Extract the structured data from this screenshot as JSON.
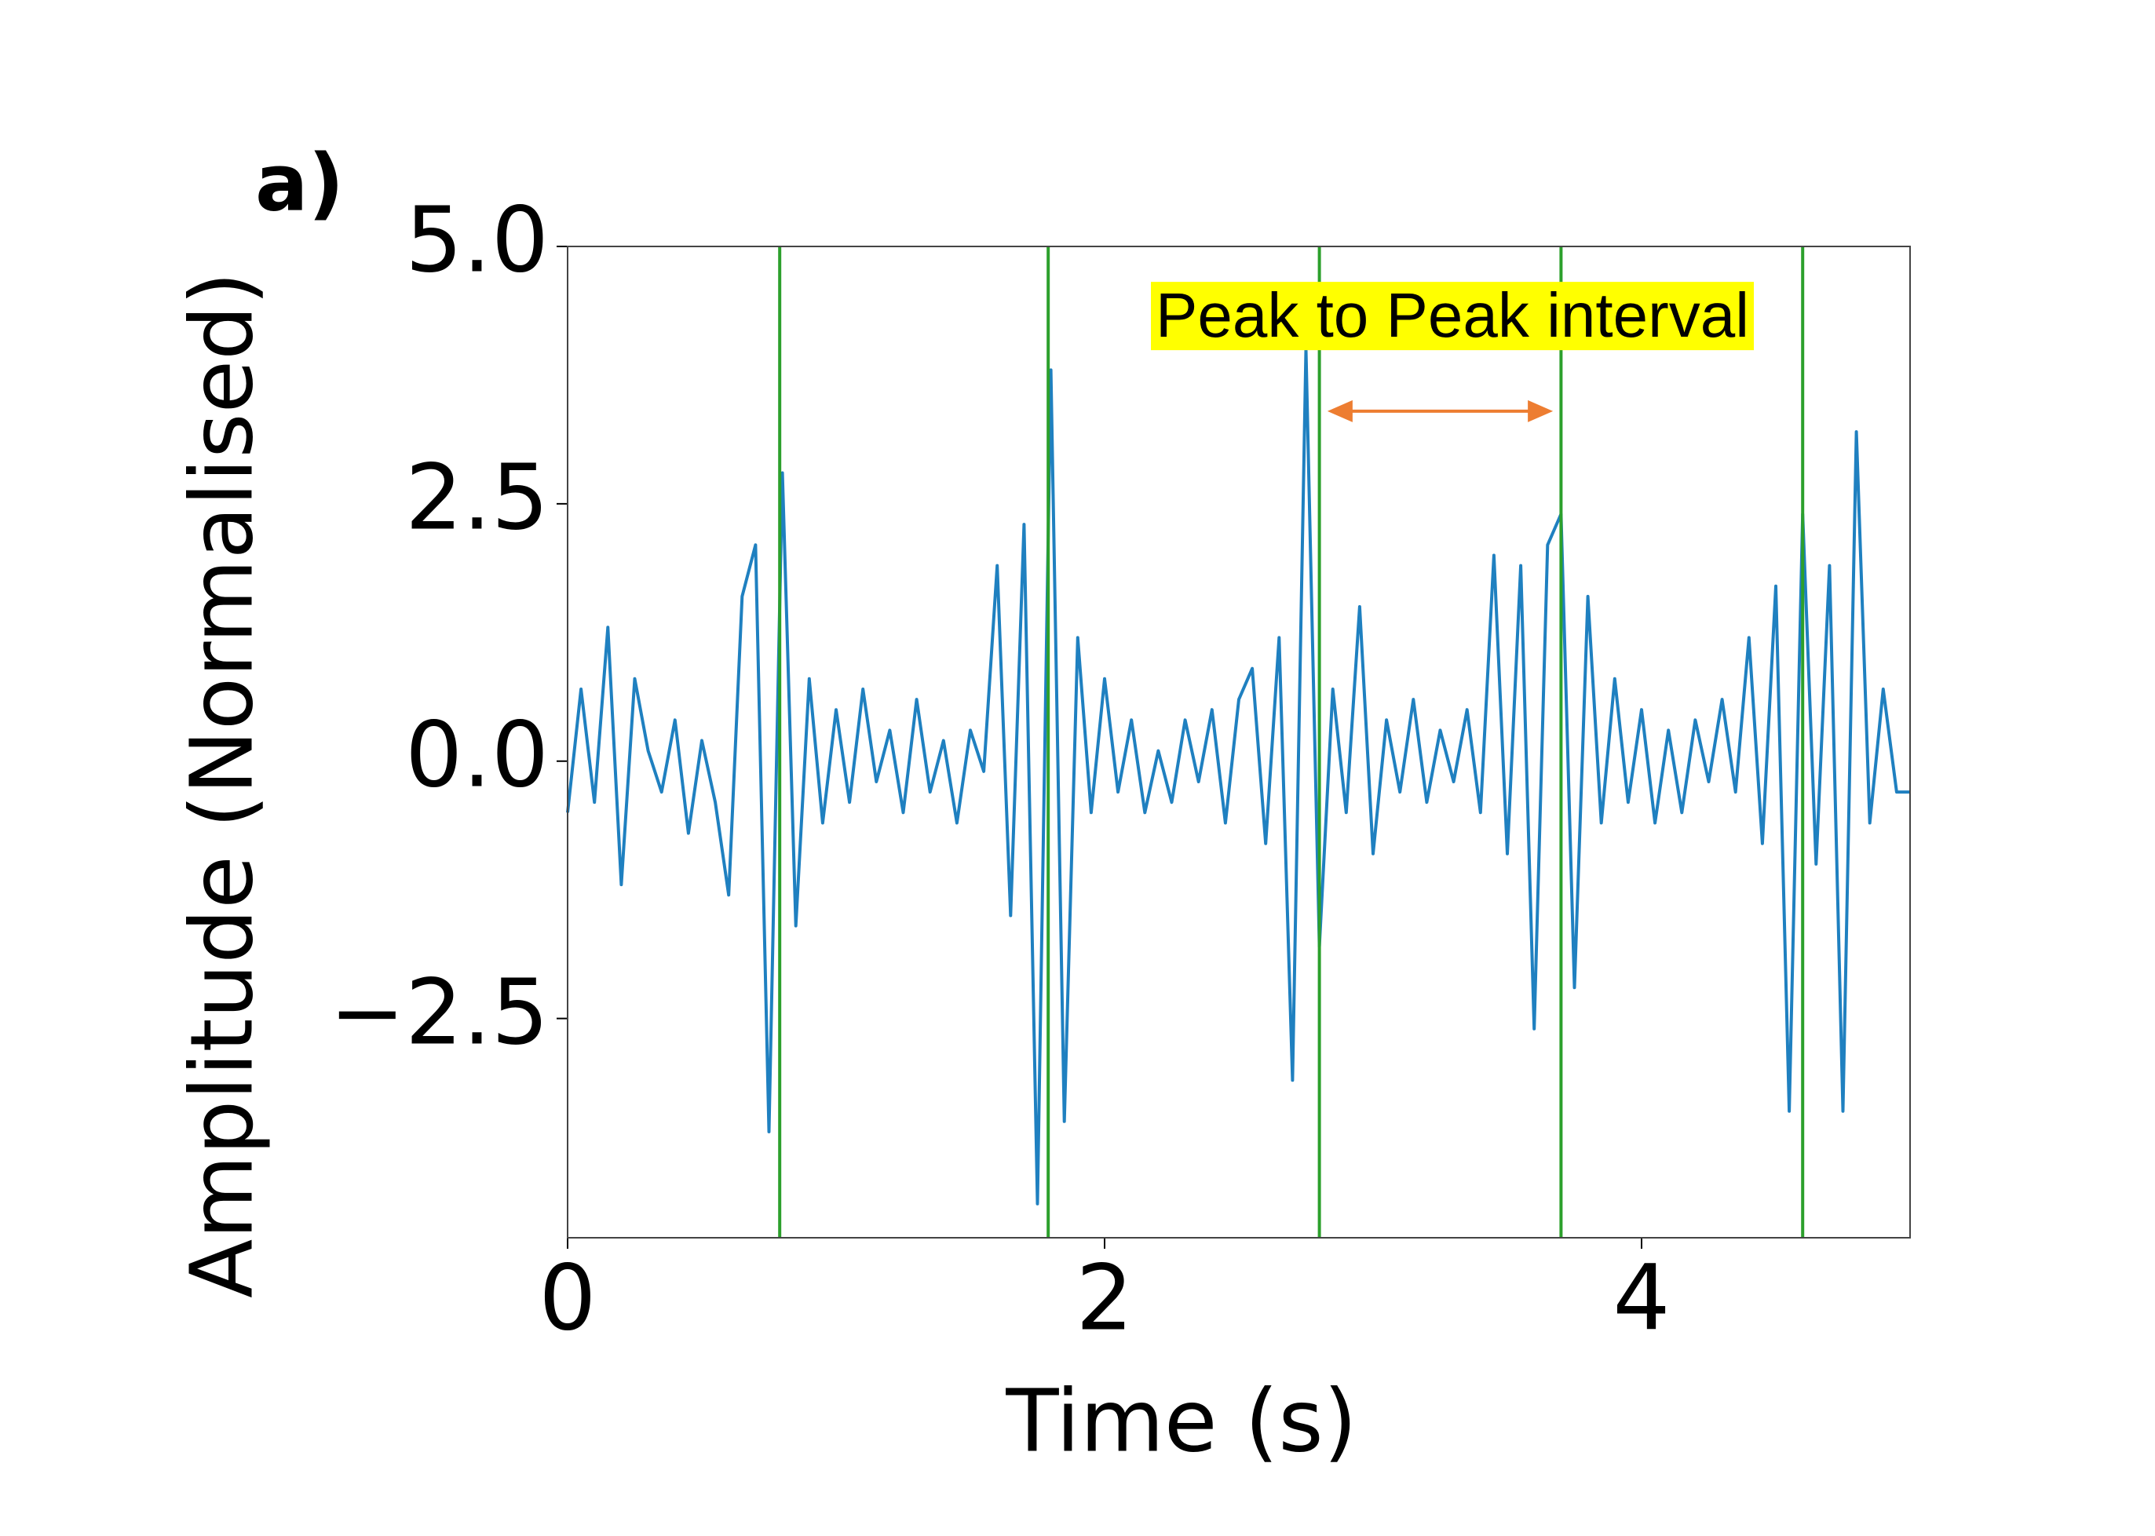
{
  "chart_data": {
    "type": "line",
    "panel_label": "a)",
    "xlabel": "Time (s)",
    "ylabel": "Amplitude (Normalised)",
    "annotation": "Peak to Peak interval",
    "x": [
      0,
      0.05,
      0.1,
      0.15,
      0.2,
      0.25,
      0.3,
      0.35,
      0.4,
      0.45,
      0.5,
      0.55,
      0.6,
      0.65,
      0.7,
      0.75,
      0.8,
      0.85,
      0.9,
      0.95,
      1,
      1.05,
      1.1,
      1.15,
      1.2,
      1.25,
      1.3,
      1.35,
      1.4,
      1.45,
      1.5,
      1.55,
      1.6,
      1.65,
      1.7,
      1.75,
      1.8,
      1.85,
      1.9,
      1.95,
      2,
      2.05,
      2.1,
      2.15,
      2.2,
      2.25,
      2.3,
      2.35,
      2.4,
      2.45,
      2.5,
      2.55,
      2.6,
      2.65,
      2.7,
      2.75,
      2.8,
      2.85,
      2.9,
      2.95,
      3,
      3.05,
      3.1,
      3.15,
      3.2,
      3.25,
      3.3,
      3.35,
      3.4,
      3.45,
      3.5,
      3.55,
      3.6,
      3.65,
      3.7,
      3.75,
      3.8,
      3.85,
      3.9,
      3.95,
      4,
      4.05,
      4.1,
      4.15,
      4.2,
      4.25,
      4.3,
      4.35,
      4.4,
      4.45,
      4.5,
      4.55,
      4.6,
      4.65,
      4.7,
      4.75,
      4.8,
      4.85,
      4.9,
      4.95,
      5
    ],
    "series": [
      {
        "color": "#1f80c0",
        "values": [
          -0.5,
          0.7,
          -0.4,
          1.3,
          -1.2,
          0.8,
          0.1,
          -0.3,
          0.4,
          -0.7,
          0.2,
          -0.4,
          -1.3,
          1.6,
          2.1,
          -3.6,
          2.8,
          -1.6,
          0.8,
          -0.6,
          0.5,
          -0.4,
          0.7,
          -0.2,
          0.3,
          -0.5,
          0.6,
          -0.3,
          0.2,
          -0.6,
          0.3,
          -0.1,
          1.9,
          -1.5,
          2.3,
          -4.3,
          3.8,
          -3.5,
          1.2,
          -0.5,
          0.8,
          -0.3,
          0.4,
          -0.5,
          0.1,
          -0.4,
          0.4,
          -0.2,
          0.5,
          -0.6,
          0.6,
          0.9,
          -0.8,
          1.2,
          -3.1,
          4.0,
          -1.8,
          0.7,
          -0.5,
          1.5,
          -0.9,
          0.4,
          -0.3,
          0.6,
          -0.4,
          0.3,
          -0.2,
          0.5,
          -0.5,
          2.0,
          -0.9,
          1.9,
          -2.6,
          2.1,
          2.4,
          -2.2,
          1.6,
          -0.6,
          0.8,
          -0.4,
          0.5,
          -0.6,
          0.3,
          -0.5,
          0.4,
          -0.2,
          0.6,
          -0.3,
          1.2,
          -0.8,
          1.7,
          -3.4,
          2.4,
          -1.0,
          1.9,
          -3.4,
          3.2,
          -0.6,
          0.7,
          -0.3,
          -0.3
        ]
      }
    ],
    "peaks": [
      0.79,
      1.79,
      2.8,
      3.7,
      4.6
    ],
    "peak_color": "#2ca02c",
    "arrow": {
      "x": [
        2.83,
        3.67
      ],
      "y": 3.4,
      "color": "#ed7d31"
    },
    "xlim": [
      0,
      5
    ],
    "ylim": [
      -4.63,
      5.0
    ],
    "xticks": [
      0,
      2,
      4
    ],
    "yticks": [
      {
        "value": 5,
        "label": "5.0"
      },
      2.5,
      {
        "value": 0,
        "label": "0.0"
      },
      {
        "value": -2.5,
        "label": "−2.5"
      }
    ]
  }
}
